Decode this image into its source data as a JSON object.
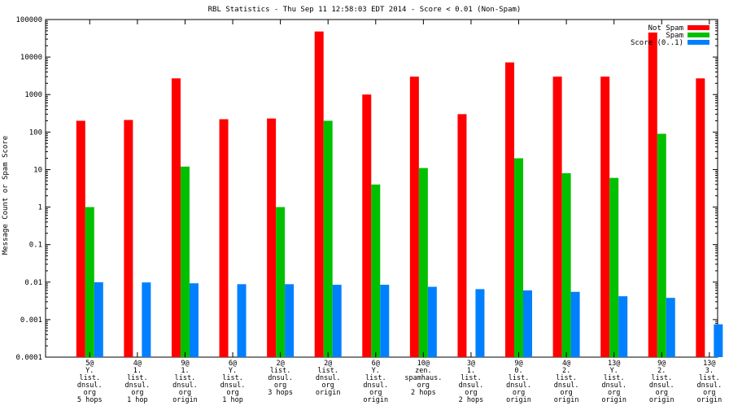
{
  "chart_data": {
    "type": "bar",
    "title": "RBL Statistics - Thu Sep 11 12:58:03 EDT 2014 - Score < 0.01 (Non-Spam)",
    "ylabel": "Message Count or Spam Score",
    "xlabel": "",
    "yscale": "log",
    "ylim": [
      0.0001,
      100000
    ],
    "yticks": [
      "100000",
      "10000",
      "1000",
      "100",
      "10",
      "1",
      "0.1",
      "0.01",
      "0.001",
      "0.0001"
    ],
    "grid": false,
    "legend_position": "top-right",
    "categories": [
      [
        "5@",
        "Y.",
        "list.",
        "dnsul.",
        "org",
        "5 hops"
      ],
      [
        "4@",
        "1.",
        "list.",
        "dnsul.",
        "org",
        "1 hop"
      ],
      [
        "9@",
        "1.",
        "list.",
        "dnsul.",
        "org",
        "origin"
      ],
      [
        "6@",
        "Y.",
        "list.",
        "dnsul.",
        "org",
        "1 hop"
      ],
      [
        "2@",
        "list.",
        "dnsul.",
        "org",
        "3 hops"
      ],
      [
        "2@",
        "list.",
        "dnsul.",
        "org",
        "origin"
      ],
      [
        "6@",
        "Y.",
        "list.",
        "dnsul.",
        "org",
        "origin"
      ],
      [
        "10@",
        "zen.",
        "spamhaus.",
        "org",
        "2 hops"
      ],
      [
        "3@",
        "1.",
        "list.",
        "dnsul.",
        "org",
        "2 hops"
      ],
      [
        "9@",
        "0.",
        "list.",
        "dnsul.",
        "org",
        "origin"
      ],
      [
        "4@",
        "2.",
        "list.",
        "dnsul.",
        "org",
        "origin"
      ],
      [
        "13@",
        "Y.",
        "list.",
        "dnsul.",
        "org",
        "origin"
      ],
      [
        "9@",
        "2.",
        "list.",
        "dnsul.",
        "org",
        "origin"
      ],
      [
        "13@",
        "3.",
        "list.",
        "dnsul.",
        "org",
        "origin"
      ]
    ],
    "series": [
      {
        "name": "Not Spam",
        "color": "#ff0000",
        "values": [
          200,
          210,
          2700,
          220,
          230,
          48000,
          1000,
          3000,
          300,
          7200,
          3000,
          3000,
          45000,
          2700
        ]
      },
      {
        "name": "Spam",
        "color": "#00c000",
        "values": [
          1,
          null,
          12,
          null,
          1,
          200,
          4,
          11,
          null,
          20,
          8,
          6,
          90,
          null
        ]
      },
      {
        "name": "Score (0..1)",
        "color": "#0080ff",
        "values": [
          0.0099,
          0.0098,
          0.0093,
          0.0088,
          0.0088,
          0.0085,
          0.0085,
          0.0075,
          0.0065,
          0.006,
          0.0055,
          0.0042,
          0.0038,
          0.00075
        ]
      }
    ]
  }
}
